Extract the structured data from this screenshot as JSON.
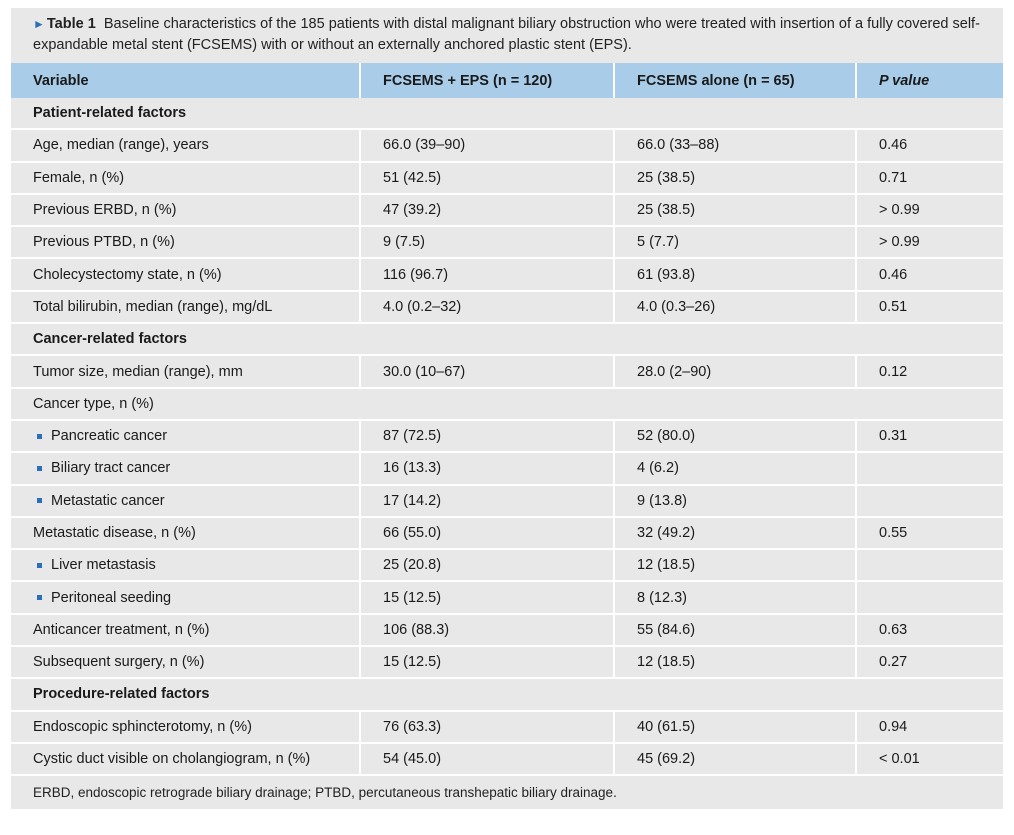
{
  "caption": {
    "label": "Table 1",
    "text": "Baseline characteristics of the 185 patients with distal malignant biliary obstruction who were treated with insertion of a fully covered self-expandable metal stent (FCSEMS) with or without an externally anchored plastic stent (EPS)."
  },
  "headers": {
    "variable": "Variable",
    "group1": "FCSEMS + EPS (n = 120)",
    "group2": "FCSEMS alone (n = 65)",
    "p": "P value"
  },
  "sections": {
    "patient": "Patient-related factors",
    "cancer": "Cancer-related factors",
    "procedure": "Procedure-related factors"
  },
  "rows": [
    {
      "label": "Age, median (range), years",
      "g1": "66.0 (39–90)",
      "g2": "66.0 (33–88)",
      "p": "0.46"
    },
    {
      "label": "Female, n (%)",
      "g1": "51 (42.5)",
      "g2": "25 (38.5)",
      "p": "0.71"
    },
    {
      "label": "Previous ERBD, n (%)",
      "g1": "47 (39.2)",
      "g2": "25 (38.5)",
      "p": "> 0.99"
    },
    {
      "label": "Previous PTBD, n (%)",
      "g1": "9 (7.5)",
      "g2": "5 (7.7)",
      "p": "> 0.99"
    },
    {
      "label": "Cholecystectomy state, n (%)",
      "g1": "116 (96.7)",
      "g2": "61 (93.8)",
      "p": "0.46"
    },
    {
      "label": "Total bilirubin, median (range), mg/dL",
      "g1": "4.0 (0.2–32)",
      "g2": "4.0 (0.3–26)",
      "p": "0.51"
    },
    {
      "label": "Tumor size, median (range), mm",
      "g1": "30.0 (10–67)",
      "g2": "28.0 (2–90)",
      "p": "0.12"
    },
    {
      "label": "Cancer type, n (%)",
      "g1": "",
      "g2": "",
      "p": ""
    },
    {
      "label": "Pancreatic cancer",
      "g1": "87 (72.5)",
      "g2": "52 (80.0)",
      "p": "0.31"
    },
    {
      "label": "Biliary tract cancer",
      "g1": "16 (13.3)",
      "g2": "4 (6.2)",
      "p": ""
    },
    {
      "label": "Metastatic cancer",
      "g1": "17 (14.2)",
      "g2": "9 (13.8)",
      "p": ""
    },
    {
      "label": "Metastatic disease, n (%)",
      "g1": "66 (55.0)",
      "g2": "32 (49.2)",
      "p": "0.55"
    },
    {
      "label": "Liver metastasis",
      "g1": "25 (20.8)",
      "g2": "12 (18.5)",
      "p": ""
    },
    {
      "label": "Peritoneal seeding",
      "g1": "15 (12.5)",
      "g2": "8 (12.3)",
      "p": ""
    },
    {
      "label": "Anticancer treatment, n (%)",
      "g1": "106 (88.3)",
      "g2": "55 (84.6)",
      "p": "0.63"
    },
    {
      "label": "Subsequent surgery, n (%)",
      "g1": "15 (12.5)",
      "g2": "12 (18.5)",
      "p": "0.27"
    },
    {
      "label": "Endoscopic sphincterotomy, n (%)",
      "g1": "76 (63.3)",
      "g2": "40 (61.5)",
      "p": "0.94"
    },
    {
      "label": "Cystic duct visible on cholangiogram, n (%)",
      "g1": "54 (45.0)",
      "g2": "45 (69.2)",
      "p": "< 0.01"
    }
  ],
  "footnote": "ERBD, endoscopic retrograde biliary drainage; PTBD, percutaneous transhepatic biliary drainage."
}
